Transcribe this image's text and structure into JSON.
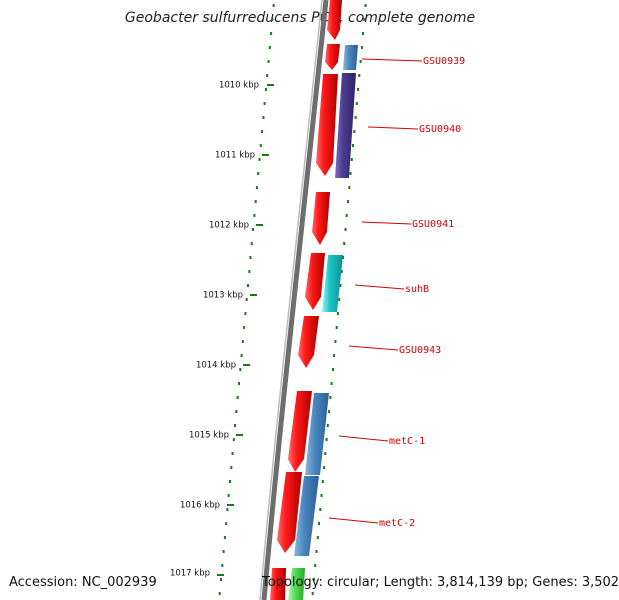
{
  "title": "Geobacter sulfurreducens PCA, complete genome",
  "accession": "Accession: NC_002939",
  "topology": "Topology: circular; Length: 3,814,139 bp; Genes: 3,502",
  "ticks": [
    {
      "label": "1010 kbp"
    },
    {
      "label": "1011 kbp"
    },
    {
      "label": "1012 kbp"
    },
    {
      "label": "1013 kbp"
    },
    {
      "label": "1014 kbp"
    },
    {
      "label": "1015 kbp"
    },
    {
      "label": "1016 kbp"
    },
    {
      "label": "1017 kbp"
    }
  ],
  "genes": [
    {
      "label": "GSU0939"
    },
    {
      "label": "GSU0940"
    },
    {
      "label": "GSU0941"
    },
    {
      "label": "suhB"
    },
    {
      "label": "GSU0943"
    },
    {
      "label": "metC-1"
    },
    {
      "label": "metC-2"
    }
  ],
  "colors": {
    "cds": "#ee0000",
    "backbone": "#7a7a7a",
    "tick": "#1a7a1a",
    "label": "#d40000",
    "blue": "#4a86c0",
    "purple": "#4a3b8c",
    "cyan": "#19c4c4",
    "green": "#55dd55"
  }
}
